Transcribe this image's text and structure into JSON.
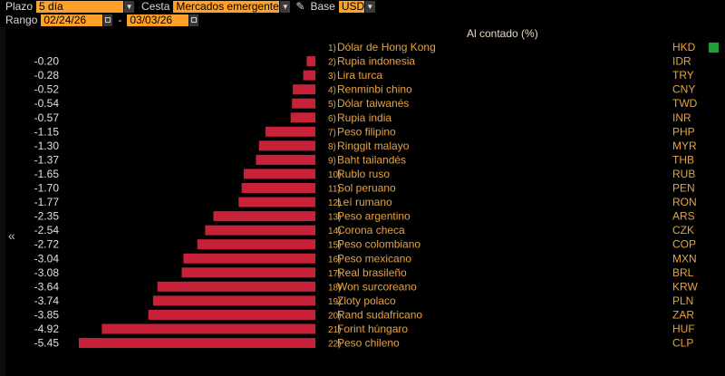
{
  "toolbar": {
    "plazo_label": "Plazo",
    "plazo_value": "5 día",
    "cesta_label": "Cesta",
    "cesta_value": "Mercados emergente",
    "base_label": "Base",
    "base_value": "USD",
    "rango_label": "Rango",
    "range_start": "02/24/26",
    "range_sep": "-",
    "range_end": "03/03/26"
  },
  "colors": {
    "bar": "#c8213a",
    "positive": "#1f9e3a",
    "text": "#e6a340",
    "value_text": "#e0e0e0"
  },
  "chart_data": {
    "type": "bar",
    "orientation": "horizontal",
    "title": "Al contado (%)",
    "categories": [
      "Dólar de Hong Kong",
      "Rupia indonesia",
      "Lira turca",
      "Renminbi chino",
      "Dólar taiwanés",
      "Rupia india",
      "Peso filipino",
      "Ringgit malayo",
      "Baht tailandés",
      "Rublo ruso",
      "Sol peruano",
      "Leí rumano",
      "Peso argentino",
      "Corona checa",
      "Peso colombiano",
      "Peso mexicano",
      "Real brasileño",
      "Won surcoreano",
      "Zloty polaco",
      "Rand sudafricano",
      "Forint húngaro",
      "Peso chileno"
    ],
    "ranks": [
      "1)",
      "2)",
      "3)",
      "4)",
      "5)",
      "6)",
      "7)",
      "8)",
      "9)",
      "10)",
      "11)",
      "12)",
      "13)",
      "14)",
      "15)",
      "16)",
      "17)",
      "18)",
      "19)",
      "20)",
      "21)",
      "22)"
    ],
    "codes": [
      "HKD",
      "IDR",
      "TRY",
      "CNY",
      "TWD",
      "INR",
      "PHP",
      "MYR",
      "THB",
      "RUB",
      "PEN",
      "RON",
      "ARS",
      "CZK",
      "COP",
      "MXN",
      "BRL",
      "KRW",
      "PLN",
      "ZAR",
      "HUF",
      "CLP"
    ],
    "values": [
      0.02,
      -0.2,
      -0.28,
      -0.52,
      -0.54,
      -0.57,
      -1.15,
      -1.3,
      -1.37,
      -1.65,
      -1.7,
      -1.77,
      -2.35,
      -2.54,
      -2.72,
      -3.04,
      -3.08,
      -3.64,
      -3.74,
      -3.85,
      -4.92,
      -5.45
    ],
    "value_labels": [
      "",
      "-0.20",
      "-0.28",
      "-0.52",
      "-0.54",
      "-0.57",
      "-1.15",
      "-1.30",
      "-1.37",
      "-1.65",
      "-1.70",
      "-1.77",
      "-2.35",
      "-2.54",
      "-2.72",
      "-3.04",
      "-3.08",
      "-3.64",
      "-3.74",
      "-3.85",
      "-4.92",
      "-5.45"
    ],
    "xlim": [
      -5.45,
      0
    ]
  }
}
